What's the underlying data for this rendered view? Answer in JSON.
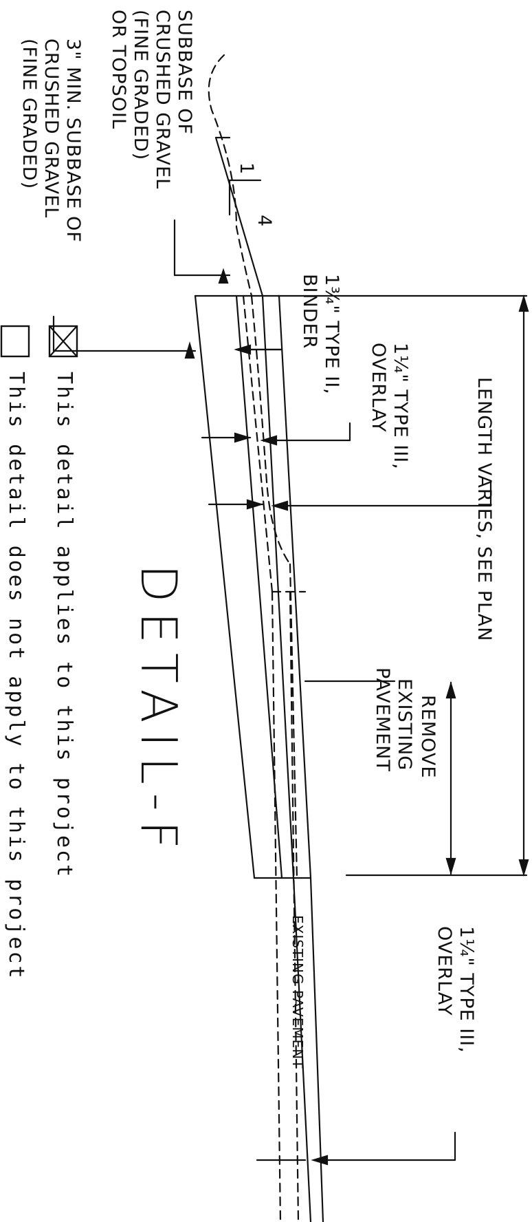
{
  "drawing": {
    "title": "DETAIL-F",
    "dimension_length": "LENGTH VARIES, SEE PLAN",
    "label_remove": [
      "REMOVE",
      "EXISTING",
      "PAVEMENT"
    ],
    "label_overlay_upper": [
      "1¼\" TYPE III,",
      "OVERLAY"
    ],
    "label_overlay_right": [
      "1¼\" TYPE III,",
      "OVERLAY"
    ],
    "label_binder": [
      "1¾\" TYPE II,",
      "BINDER"
    ],
    "label_subbase_topsoil": [
      "SUBBASE OF",
      "CRUSHED GRAVEL",
      "(FINE GRADED)",
      "OR TOPSOIL"
    ],
    "label_subbase_min": [
      "3\" MIN. SUBBASE OF",
      "CRUSHED GRAVEL",
      "(FINE GRADED)"
    ],
    "label_existing_pavement": "EXISTING PAVEMENT",
    "slope_rise": "1",
    "slope_run": "4"
  },
  "applicability": {
    "applies_label": "This detail applies to this project",
    "not_applies_label": "This detail does not apply to this project",
    "applies_checked": true,
    "not_applies_checked": false
  }
}
